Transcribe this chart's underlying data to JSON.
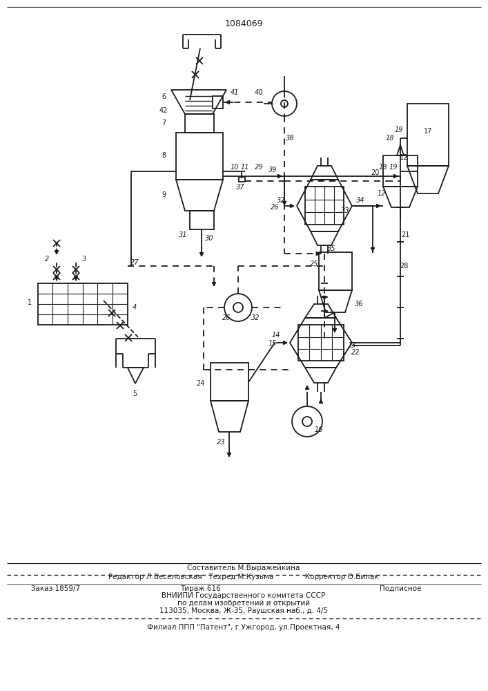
{
  "title": "1084069",
  "background_color": "#ffffff",
  "line_color": "#1a1a1a"
}
